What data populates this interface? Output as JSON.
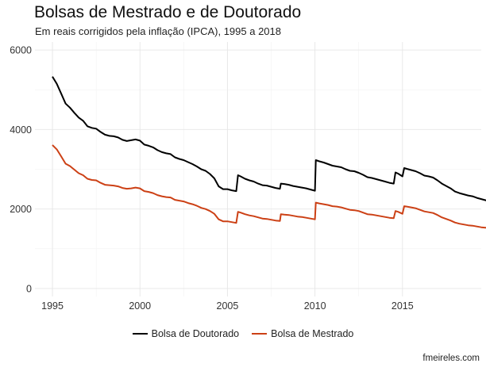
{
  "chart_data": {
    "type": "line",
    "title": "Bolsas de Mestrado e de Doutorado",
    "subtitle": "Em reais corrigidos pela inflação (IPCA), 1995 a 2018",
    "caption": "fmeireles.com",
    "xlabel": "",
    "ylabel": "",
    "xlim": [
      1994,
      2019.5
    ],
    "ylim": [
      -200,
      6200
    ],
    "x_ticks": [
      1995,
      2000,
      2005,
      2010,
      2015
    ],
    "y_ticks": [
      0,
      2000,
      4000,
      6000
    ],
    "grid": true,
    "legend_position": "bottom",
    "series": [
      {
        "name": "Bolsa de Doutorado",
        "color": "#000000",
        "points": [
          [
            1995.0,
            5330
          ],
          [
            1995.25,
            5150
          ],
          [
            1995.5,
            4900
          ],
          [
            1995.75,
            4650
          ],
          [
            1996.0,
            4550
          ],
          [
            1996.25,
            4420
          ],
          [
            1996.5,
            4300
          ],
          [
            1996.75,
            4220
          ],
          [
            1997.0,
            4080
          ],
          [
            1997.25,
            4040
          ],
          [
            1997.5,
            4020
          ],
          [
            1997.75,
            3940
          ],
          [
            1998.0,
            3870
          ],
          [
            1998.25,
            3840
          ],
          [
            1998.5,
            3830
          ],
          [
            1998.75,
            3800
          ],
          [
            1999.0,
            3740
          ],
          [
            1999.25,
            3710
          ],
          [
            1999.5,
            3730
          ],
          [
            1999.75,
            3750
          ],
          [
            2000.0,
            3720
          ],
          [
            2000.25,
            3620
          ],
          [
            2000.5,
            3590
          ],
          [
            2000.75,
            3550
          ],
          [
            2001.0,
            3480
          ],
          [
            2001.25,
            3430
          ],
          [
            2001.5,
            3400
          ],
          [
            2001.75,
            3380
          ],
          [
            2002.0,
            3300
          ],
          [
            2002.25,
            3260
          ],
          [
            2002.5,
            3230
          ],
          [
            2002.75,
            3180
          ],
          [
            2003.0,
            3130
          ],
          [
            2003.25,
            3070
          ],
          [
            2003.5,
            3000
          ],
          [
            2003.75,
            2960
          ],
          [
            2004.0,
            2880
          ],
          [
            2004.25,
            2770
          ],
          [
            2004.5,
            2570
          ],
          [
            2004.75,
            2500
          ],
          [
            2005.0,
            2500
          ],
          [
            2005.25,
            2470
          ],
          [
            2005.5,
            2450
          ],
          [
            2005.6,
            2850
          ],
          [
            2005.75,
            2820
          ],
          [
            2006.0,
            2760
          ],
          [
            2006.25,
            2720
          ],
          [
            2006.5,
            2690
          ],
          [
            2006.75,
            2640
          ],
          [
            2007.0,
            2600
          ],
          [
            2007.25,
            2590
          ],
          [
            2007.5,
            2560
          ],
          [
            2007.75,
            2530
          ],
          [
            2008.0,
            2510
          ],
          [
            2008.05,
            2640
          ],
          [
            2008.25,
            2630
          ],
          [
            2008.5,
            2610
          ],
          [
            2008.75,
            2580
          ],
          [
            2009.0,
            2560
          ],
          [
            2009.25,
            2540
          ],
          [
            2009.5,
            2520
          ],
          [
            2009.75,
            2490
          ],
          [
            2010.0,
            2460
          ],
          [
            2010.05,
            3230
          ],
          [
            2010.25,
            3200
          ],
          [
            2010.5,
            3170
          ],
          [
            2010.75,
            3130
          ],
          [
            2011.0,
            3090
          ],
          [
            2011.25,
            3070
          ],
          [
            2011.5,
            3050
          ],
          [
            2011.75,
            3000
          ],
          [
            2012.0,
            2960
          ],
          [
            2012.25,
            2950
          ],
          [
            2012.5,
            2910
          ],
          [
            2012.75,
            2860
          ],
          [
            2013.0,
            2800
          ],
          [
            2013.25,
            2780
          ],
          [
            2013.5,
            2750
          ],
          [
            2013.75,
            2720
          ],
          [
            2014.0,
            2690
          ],
          [
            2014.25,
            2660
          ],
          [
            2014.5,
            2640
          ],
          [
            2014.6,
            2920
          ],
          [
            2014.75,
            2890
          ],
          [
            2015.0,
            2820
          ],
          [
            2015.1,
            3030
          ],
          [
            2015.25,
            3010
          ],
          [
            2015.5,
            2980
          ],
          [
            2015.75,
            2950
          ],
          [
            2016.0,
            2900
          ],
          [
            2016.25,
            2840
          ],
          [
            2016.5,
            2820
          ],
          [
            2016.75,
            2790
          ],
          [
            2017.0,
            2720
          ],
          [
            2017.25,
            2640
          ],
          [
            2017.5,
            2580
          ],
          [
            2017.75,
            2520
          ],
          [
            2018.0,
            2440
          ],
          [
            2018.25,
            2400
          ],
          [
            2018.5,
            2370
          ],
          [
            2018.75,
            2340
          ],
          [
            2019.0,
            2320
          ],
          [
            2019.25,
            2280
          ],
          [
            2019.5,
            2250
          ],
          [
            2019.75,
            2220
          ],
          [
            2020.0,
            2180
          ]
        ]
      },
      {
        "name": "Bolsa de Mestrado",
        "color": "#cc4015",
        "points": [
          [
            1995.0,
            3610
          ],
          [
            1995.25,
            3500
          ],
          [
            1995.5,
            3320
          ],
          [
            1995.75,
            3140
          ],
          [
            1996.0,
            3080
          ],
          [
            1996.25,
            2990
          ],
          [
            1996.5,
            2900
          ],
          [
            1996.75,
            2850
          ],
          [
            1997.0,
            2760
          ],
          [
            1997.25,
            2730
          ],
          [
            1997.5,
            2720
          ],
          [
            1997.75,
            2660
          ],
          [
            1998.0,
            2610
          ],
          [
            1998.25,
            2600
          ],
          [
            1998.5,
            2590
          ],
          [
            1998.75,
            2570
          ],
          [
            1999.0,
            2530
          ],
          [
            1999.25,
            2510
          ],
          [
            1999.5,
            2520
          ],
          [
            1999.75,
            2540
          ],
          [
            2000.0,
            2520
          ],
          [
            2000.25,
            2450
          ],
          [
            2000.5,
            2430
          ],
          [
            2000.75,
            2400
          ],
          [
            2001.0,
            2350
          ],
          [
            2001.25,
            2320
          ],
          [
            2001.5,
            2300
          ],
          [
            2001.75,
            2290
          ],
          [
            2002.0,
            2230
          ],
          [
            2002.25,
            2210
          ],
          [
            2002.5,
            2190
          ],
          [
            2002.75,
            2150
          ],
          [
            2003.0,
            2120
          ],
          [
            2003.25,
            2080
          ],
          [
            2003.5,
            2030
          ],
          [
            2003.75,
            2000
          ],
          [
            2004.0,
            1950
          ],
          [
            2004.25,
            1880
          ],
          [
            2004.5,
            1740
          ],
          [
            2004.75,
            1690
          ],
          [
            2005.0,
            1690
          ],
          [
            2005.25,
            1670
          ],
          [
            2005.5,
            1650
          ],
          [
            2005.6,
            1930
          ],
          [
            2005.75,
            1910
          ],
          [
            2006.0,
            1870
          ],
          [
            2006.25,
            1840
          ],
          [
            2006.5,
            1820
          ],
          [
            2006.75,
            1790
          ],
          [
            2007.0,
            1760
          ],
          [
            2007.25,
            1750
          ],
          [
            2007.5,
            1730
          ],
          [
            2007.75,
            1710
          ],
          [
            2008.0,
            1700
          ],
          [
            2008.05,
            1870
          ],
          [
            2008.25,
            1860
          ],
          [
            2008.5,
            1850
          ],
          [
            2008.75,
            1830
          ],
          [
            2009.0,
            1810
          ],
          [
            2009.25,
            1800
          ],
          [
            2009.5,
            1780
          ],
          [
            2009.75,
            1760
          ],
          [
            2010.0,
            1740
          ],
          [
            2010.05,
            2160
          ],
          [
            2010.25,
            2140
          ],
          [
            2010.5,
            2120
          ],
          [
            2010.75,
            2100
          ],
          [
            2011.0,
            2070
          ],
          [
            2011.25,
            2060
          ],
          [
            2011.5,
            2040
          ],
          [
            2011.75,
            2010
          ],
          [
            2012.0,
            1980
          ],
          [
            2012.25,
            1970
          ],
          [
            2012.5,
            1950
          ],
          [
            2012.75,
            1910
          ],
          [
            2013.0,
            1870
          ],
          [
            2013.25,
            1860
          ],
          [
            2013.5,
            1840
          ],
          [
            2013.75,
            1820
          ],
          [
            2014.0,
            1800
          ],
          [
            2014.25,
            1780
          ],
          [
            2014.5,
            1770
          ],
          [
            2014.6,
            1950
          ],
          [
            2014.75,
            1930
          ],
          [
            2015.0,
            1880
          ],
          [
            2015.1,
            2070
          ],
          [
            2015.25,
            2060
          ],
          [
            2015.5,
            2040
          ],
          [
            2015.75,
            2020
          ],
          [
            2016.0,
            1980
          ],
          [
            2016.25,
            1940
          ],
          [
            2016.5,
            1920
          ],
          [
            2016.75,
            1900
          ],
          [
            2017.0,
            1850
          ],
          [
            2017.25,
            1790
          ],
          [
            2017.5,
            1750
          ],
          [
            2017.75,
            1710
          ],
          [
            2018.0,
            1660
          ],
          [
            2018.25,
            1630
          ],
          [
            2018.5,
            1610
          ],
          [
            2018.75,
            1590
          ],
          [
            2019.0,
            1580
          ],
          [
            2019.25,
            1560
          ],
          [
            2019.5,
            1540
          ],
          [
            2019.75,
            1530
          ],
          [
            2020.0,
            1510
          ]
        ]
      }
    ]
  }
}
